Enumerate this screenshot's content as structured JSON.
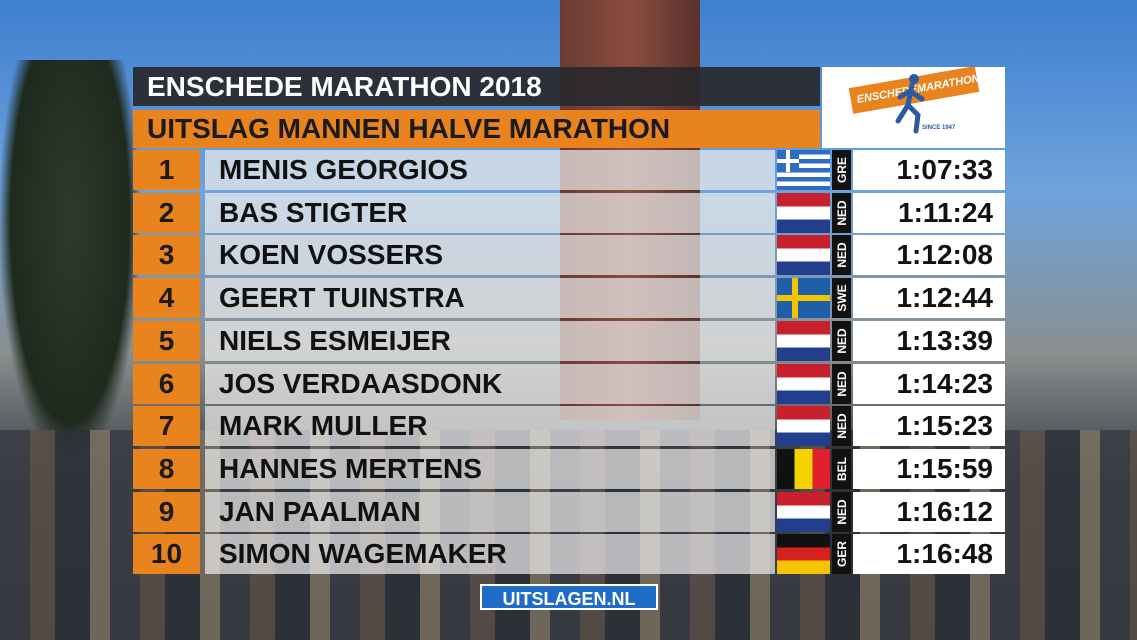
{
  "header": {
    "title": "ENSCHEDE MARATHON 2018",
    "subtitle": "UITSLAG MANNEN HALVE MARATHON"
  },
  "logo": {
    "left": "ENSCHEDE",
    "right": "MARATHON",
    "since": "SINCE 1947"
  },
  "table": {
    "rows": [
      [
        "1",
        "MENIS GEORGIOS",
        "GRE",
        "1:07:33"
      ],
      [
        "2",
        "BAS STIGTER",
        "NED",
        "1:11:24"
      ],
      [
        "3",
        "KOEN VOSSERS",
        "NED",
        "1:12:08"
      ],
      [
        "4",
        "GEERT TUINSTRA",
        "SWE",
        "1:12:44"
      ],
      [
        "5",
        "NIELS ESMEIJER",
        "NED",
        "1:13:39"
      ],
      [
        "6",
        "JOS VERDAASDONK",
        "NED",
        "1:14:23"
      ],
      [
        "7",
        "MARK MULLER",
        "NED",
        "1:15:23"
      ],
      [
        "8",
        "HANNES MERTENS",
        "BEL",
        "1:15:59"
      ],
      [
        "9",
        "JAN PAALMAN",
        "NED",
        "1:16:12"
      ],
      [
        "10",
        "SIMON WAGEMAKER",
        "GER",
        "1:16:48"
      ]
    ]
  },
  "footer": {
    "site": "UITSLAGEN.NL"
  }
}
